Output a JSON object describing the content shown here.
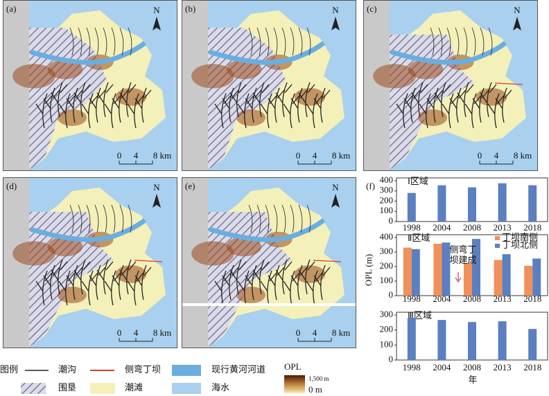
{
  "maps": [
    {
      "label": "(a)",
      "north": "N",
      "scale": [
        "0",
        "4",
        "8 km"
      ]
    },
    {
      "label": "(b)",
      "north": "N",
      "scale": [
        "0",
        "4",
        "8 km"
      ]
    },
    {
      "label": "(c)",
      "north": "N",
      "scale": [
        "0",
        "4",
        "8 km"
      ]
    },
    {
      "label": "(d)",
      "north": "N",
      "scale": [
        "0",
        "4",
        "8 km"
      ]
    },
    {
      "label": "(e)",
      "north": "N",
      "scale": [
        "0",
        "4",
        "8 km"
      ]
    }
  ],
  "legend": {
    "title": "图例",
    "channel": "潮沟",
    "groin": "侧弯丁坝",
    "river": "现行黄河河道",
    "opl": "OPL",
    "opl_max": "1,500 m",
    "opl_min": "0 m",
    "reclaim": "围垦",
    "flat": "潮滩",
    "sea": "海水"
  },
  "panel_f": {
    "label": "(f)",
    "y_label": "OPL (m)",
    "x_label": "年"
  },
  "chart_data": [
    {
      "type": "bar",
      "title": "Ⅰ区域",
      "categories": [
        "1998",
        "2004",
        "2008",
        "2013",
        "2018"
      ],
      "values": [
        280,
        355,
        335,
        375,
        355
      ],
      "color": "#5b7fbf",
      "ylim": [
        0,
        400
      ],
      "yticks": [
        0,
        100,
        200,
        300,
        400
      ]
    },
    {
      "type": "bar",
      "title": "Ⅱ区域",
      "categories": [
        "1998",
        "2004",
        "2008",
        "2013",
        "2018"
      ],
      "series": [
        {
          "name": "丁坝南侧",
          "color": "#f0905a",
          "values": [
            330,
            357,
            225,
            245,
            205
          ]
        },
        {
          "name": "丁坝北侧",
          "color": "#5b7fbf",
          "values": [
            320,
            365,
            390,
            285,
            255
          ]
        }
      ],
      "ylim": [
        0,
        400
      ],
      "yticks": [
        0,
        100,
        200,
        300,
        400
      ],
      "annotation": [
        "侧弯丁",
        "坝建成"
      ]
    },
    {
      "type": "bar",
      "title": "Ⅲ区域",
      "categories": [
        "1998",
        "2004",
        "2008",
        "2013",
        "2018"
      ],
      "values": [
        280,
        267,
        253,
        258,
        207
      ],
      "color": "#5b7fbf",
      "ylim": [
        0,
        300
      ],
      "yticks": [
        0,
        100,
        200,
        300
      ]
    }
  ]
}
